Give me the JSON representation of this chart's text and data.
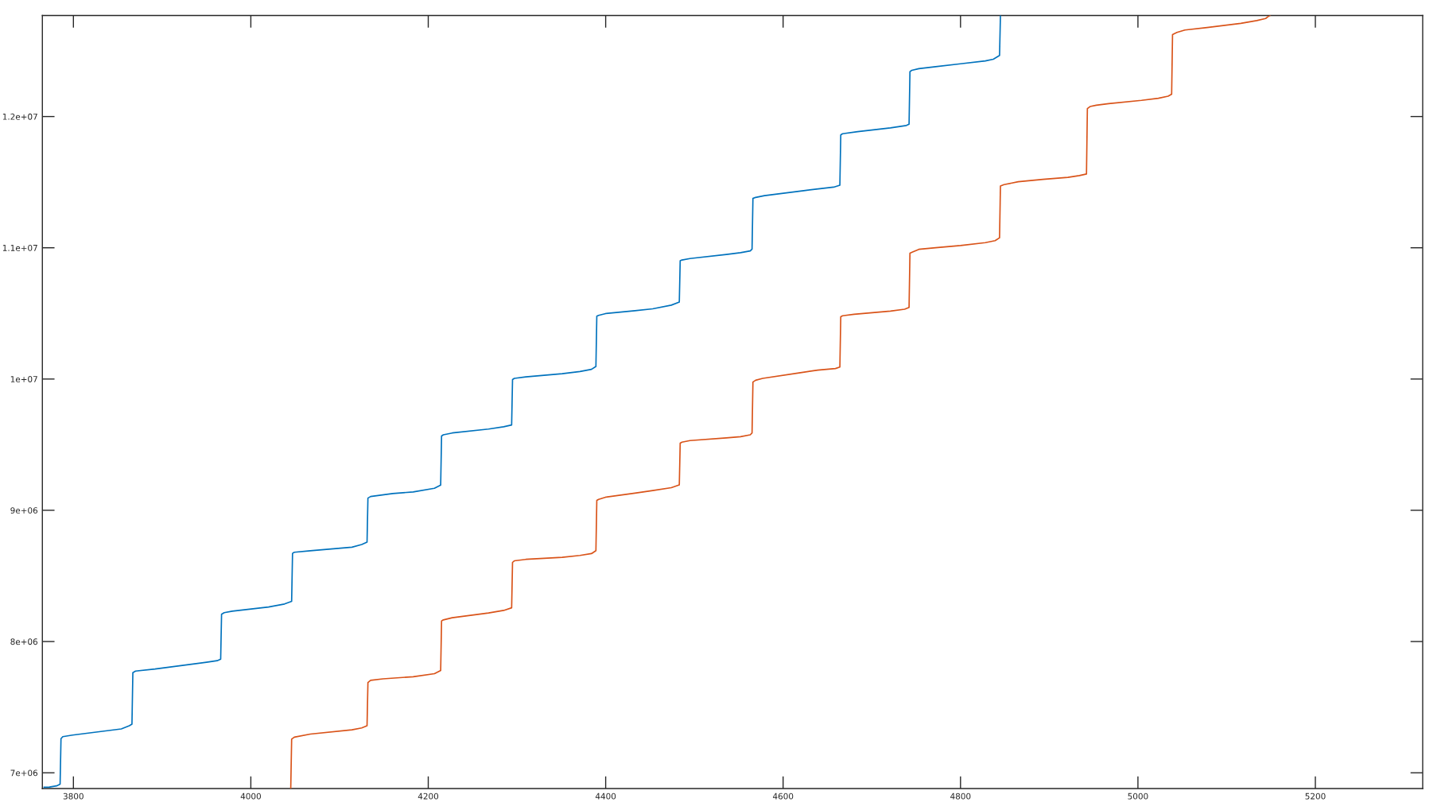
{
  "chart_data": {
    "type": "line",
    "series": [
      {
        "color": "#0072bd",
        "x": [
          3767,
          3773,
          3781,
          3785,
          3786,
          3788,
          3799,
          3854,
          3863,
          3866,
          3867,
          3870,
          3892,
          3950,
          3962,
          3966,
          3967,
          3970,
          3979,
          4020,
          4038,
          4046,
          4047,
          4049,
          4067,
          4114,
          4125,
          4131,
          4132,
          4135,
          4160,
          4183,
          4207,
          4214,
          4215,
          4217,
          4227,
          4268,
          4285,
          4294,
          4295,
          4297,
          4310,
          4351,
          4371,
          4384,
          4389,
          4390,
          4392,
          4400,
          4433,
          4453,
          4474,
          4483,
          4484,
          4486,
          4495,
          4536,
          4552,
          4563,
          4565,
          4566,
          4568,
          4579,
          4625,
          4657,
          4664,
          4665,
          4667,
          4684,
          4721,
          4739,
          4742,
          4743,
          4745,
          4753,
          4772,
          4800,
          4828,
          4837,
          4844,
          4845
        ],
        "values": [
          6890000,
          6891000,
          6900000,
          6913000,
          7260000,
          7275000,
          7287000,
          7334000,
          7358000,
          7370000,
          7763000,
          7775000,
          7791000,
          7842000,
          7854000,
          7866000,
          8208000,
          8220000,
          8231000,
          8263000,
          8286000,
          8306000,
          8672000,
          8680000,
          8692000,
          8719000,
          8739000,
          8758000,
          9093000,
          9105000,
          9128000,
          9140000,
          9168000,
          9192000,
          9566000,
          9575000,
          9589000,
          9619000,
          9636000,
          9650000,
          9996000,
          10005000,
          10016000,
          10041000,
          10057000,
          10074000,
          10096000,
          10479000,
          10485000,
          10499000,
          10521000,
          10535000,
          10563000,
          10587000,
          10901000,
          10907000,
          10918000,
          10949000,
          10963000,
          10976000,
          10990000,
          11376000,
          11382000,
          11397000,
          11437000,
          11462000,
          11477000,
          11860000,
          11869000,
          11885000,
          11914000,
          11932000,
          11941000,
          12342000,
          12352000,
          12365000,
          12380000,
          12402000,
          12424000,
          12437000,
          12465000,
          12770000
        ]
      },
      {
        "color": "#d95319",
        "x": [
          4045,
          4046,
          4049,
          4067,
          4114,
          4125,
          4131,
          4132,
          4135,
          4149,
          4183,
          4207,
          4214,
          4215,
          4217,
          4227,
          4268,
          4285,
          4294,
          4295,
          4297,
          4310,
          4351,
          4371,
          4384,
          4389,
          4390,
          4392,
          4400,
          4433,
          4453,
          4474,
          4483,
          4484,
          4486,
          4495,
          4536,
          4552,
          4563,
          4565,
          4566,
          4569,
          4577,
          4618,
          4639,
          4659,
          4664,
          4665,
          4667,
          4680,
          4721,
          4737,
          4742,
          4743,
          4746,
          4753,
          4772,
          4800,
          4828,
          4839,
          4844,
          4845,
          4849,
          4865,
          4893,
          4921,
          4934,
          4942,
          4943,
          4946,
          4953,
          4967,
          5004,
          5023,
          5034,
          5038,
          5039,
          5044,
          5053,
          5078,
          5116,
          5134,
          5144,
          5147,
          5149
        ],
        "values": [
          6880000,
          7256000,
          7271000,
          7295000,
          7327000,
          7342000,
          7358000,
          7688000,
          7704000,
          7716000,
          7732000,
          7755000,
          7779000,
          8157000,
          8165000,
          8181000,
          8218000,
          8237000,
          8257000,
          8603000,
          8615000,
          8626000,
          8642000,
          8656000,
          8670000,
          8692000,
          9075000,
          9083000,
          9100000,
          9131000,
          9150000,
          9172000,
          9194000,
          9511000,
          9519000,
          9531000,
          9552000,
          9561000,
          9575000,
          9589000,
          9977000,
          9991000,
          10005000,
          10047000,
          10068000,
          10080000,
          10091000,
          10474000,
          10482000,
          10493000,
          10518000,
          10532000,
          10546000,
          10959000,
          10968000,
          10988000,
          11001000,
          11017000,
          11039000,
          11054000,
          11076000,
          11471000,
          11481000,
          11503000,
          11521000,
          11537000,
          11550000,
          11562000,
          12060000,
          12076000,
          12086000,
          12098000,
          12123000,
          12139000,
          12155000,
          12170000,
          12625000,
          12641000,
          12659000,
          12678000,
          12710000,
          12731000,
          12747000,
          12763000,
          12770000
        ]
      }
    ],
    "xlim": [
      3765,
      5321
    ],
    "ylim": [
      6880000,
      12770000
    ],
    "xticks": [
      3800,
      4000,
      4200,
      4400,
      4600,
      4800,
      5000,
      5200
    ],
    "yticks": [
      {
        "value": 7000000,
        "label": "7e+06"
      },
      {
        "value": 8000000,
        "label": "8e+06"
      },
      {
        "value": 9000000,
        "label": "9e+06"
      },
      {
        "value": 10000000,
        "label": "1e+07"
      },
      {
        "value": 11000000,
        "label": "1.1e+07"
      },
      {
        "value": 12000000,
        "label": "1.2e+07"
      }
    ],
    "marker": "none",
    "line_style": "solid"
  }
}
